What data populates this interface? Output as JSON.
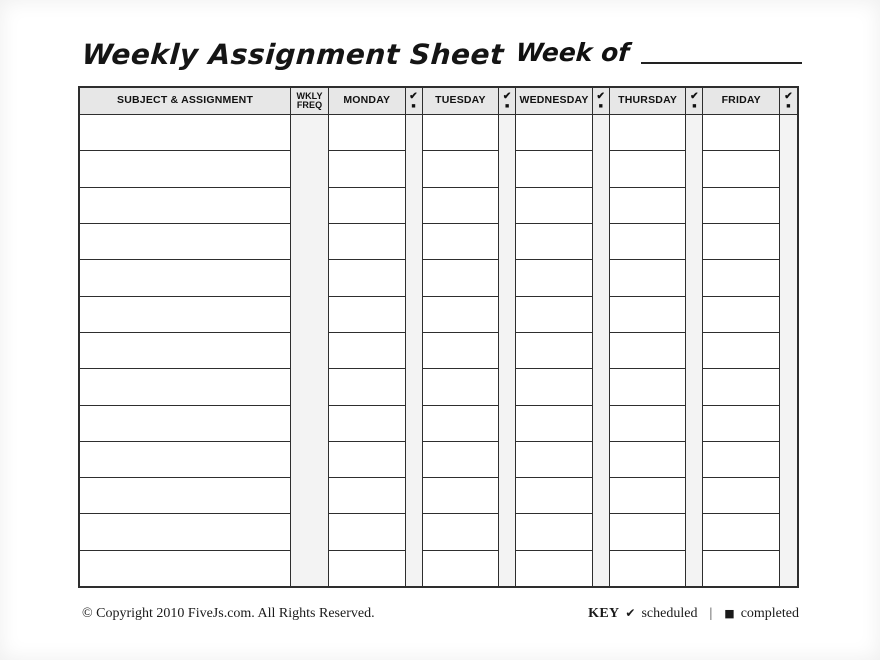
{
  "page": {
    "title": "Weekly Assignment Sheet",
    "week_of_label": "Week of"
  },
  "table": {
    "headers": {
      "subject": "SUBJECT & ASSIGNMENT",
      "wkly_line1": "WKLY",
      "wkly_line2": "FREQ",
      "days": [
        "MONDAY",
        "TUESDAY",
        "WEDNESDAY",
        "THURSDAY",
        "FRIDAY"
      ]
    },
    "check_icon": "✔",
    "square_icon": "■",
    "row_count": 13
  },
  "footer": {
    "copyright": "© Copyright 2010 FiveJs.com. All Rights Reserved.",
    "key_label": "KEY",
    "scheduled_label": "scheduled",
    "separator": "|",
    "completed_label": "completed"
  },
  "colors": {
    "header_bg": "#e7e7e7",
    "strip_bg": "#f3f3f3",
    "border": "#2e2e2e",
    "ink": "#111111"
  }
}
